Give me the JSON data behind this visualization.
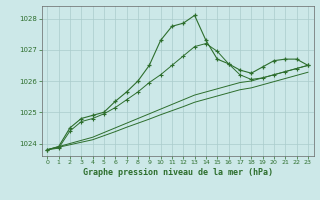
{
  "xlabel": "Graphe pression niveau de la mer (hPa)",
  "bg_color": "#cce8e8",
  "grid_color": "#aacccc",
  "line_color": "#2d6e2d",
  "xlim": [
    -0.5,
    23.5
  ],
  "ylim": [
    1023.6,
    1028.4
  ],
  "yticks": [
    1024,
    1025,
    1026,
    1027,
    1028
  ],
  "xticks": [
    0,
    1,
    2,
    3,
    4,
    5,
    6,
    7,
    8,
    9,
    10,
    11,
    12,
    13,
    14,
    15,
    16,
    17,
    18,
    19,
    20,
    21,
    22,
    23
  ],
  "series1_x": [
    0,
    1,
    2,
    3,
    4,
    5,
    6,
    7,
    8,
    9,
    10,
    11,
    12,
    13,
    14,
    15,
    16,
    17,
    18,
    19,
    20,
    21,
    22,
    23
  ],
  "series1_y": [
    1023.8,
    1023.9,
    1024.5,
    1024.8,
    1024.9,
    1025.0,
    1025.35,
    1025.65,
    1026.0,
    1026.5,
    1027.3,
    1027.75,
    1027.85,
    1028.1,
    1027.3,
    1026.7,
    1026.55,
    1026.35,
    1026.25,
    1026.45,
    1026.65,
    1026.7,
    1026.7,
    1026.5
  ],
  "series2_x": [
    0,
    1,
    2,
    3,
    4,
    5,
    6,
    7,
    8,
    9,
    10,
    11,
    12,
    13,
    14,
    15,
    16,
    17,
    18,
    19,
    20,
    21,
    22,
    23
  ],
  "series2_y": [
    1023.8,
    1023.85,
    1024.4,
    1024.7,
    1024.8,
    1024.95,
    1025.15,
    1025.4,
    1025.65,
    1025.95,
    1026.2,
    1026.5,
    1026.8,
    1027.1,
    1027.2,
    1026.95,
    1026.55,
    1026.2,
    1026.05,
    1026.1,
    1026.2,
    1026.3,
    1026.4,
    1026.5
  ],
  "trend1_x": [
    0,
    1,
    2,
    3,
    4,
    5,
    6,
    7,
    8,
    9,
    10,
    11,
    12,
    13,
    14,
    15,
    16,
    17,
    18,
    19,
    20,
    21,
    22,
    23
  ],
  "trend1_y": [
    1023.8,
    1023.9,
    1024.0,
    1024.1,
    1024.2,
    1024.35,
    1024.5,
    1024.65,
    1024.8,
    1024.95,
    1025.1,
    1025.25,
    1025.4,
    1025.55,
    1025.65,
    1025.75,
    1025.85,
    1025.95,
    1026.0,
    1026.1,
    1026.2,
    1026.3,
    1026.4,
    1026.5
  ],
  "trend2_x": [
    0,
    1,
    2,
    3,
    4,
    5,
    6,
    7,
    8,
    9,
    10,
    11,
    12,
    13,
    14,
    15,
    16,
    17,
    18,
    19,
    20,
    21,
    22,
    23
  ],
  "trend2_y": [
    1023.8,
    1023.88,
    1023.96,
    1024.04,
    1024.12,
    1024.25,
    1024.38,
    1024.52,
    1024.65,
    1024.78,
    1024.92,
    1025.05,
    1025.18,
    1025.32,
    1025.42,
    1025.52,
    1025.62,
    1025.72,
    1025.78,
    1025.88,
    1025.98,
    1026.08,
    1026.18,
    1026.28
  ]
}
